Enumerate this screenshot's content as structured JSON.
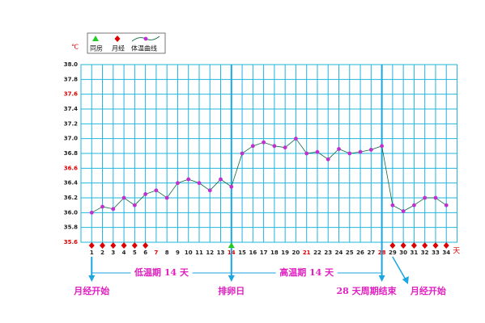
{
  "chart_data": {
    "type": "line",
    "unit": "℃",
    "x_unit": "天",
    "x": [
      1,
      2,
      3,
      4,
      5,
      6,
      7,
      8,
      9,
      10,
      11,
      12,
      13,
      14,
      15,
      16,
      17,
      18,
      19,
      20,
      21,
      22,
      23,
      24,
      25,
      26,
      27,
      28,
      29,
      30,
      31,
      32,
      33,
      34
    ],
    "xlim": [
      0,
      35
    ],
    "x_highlight": {
      "days": [
        7,
        14,
        21,
        28
      ],
      "color": "#dd0000"
    },
    "series": [
      {
        "name": "体温曲线",
        "color": "#0a6a3a",
        "marker_color": "#c030d0",
        "values": [
          36.0,
          36.08,
          36.05,
          36.2,
          36.1,
          36.25,
          36.3,
          36.2,
          36.4,
          36.45,
          36.4,
          36.3,
          36.45,
          36.35,
          36.8,
          36.9,
          36.95,
          36.9,
          36.88,
          37.0,
          36.8,
          36.82,
          36.72,
          36.86,
          36.8,
          36.82,
          36.85,
          36.9,
          36.1,
          36.02,
          36.1,
          36.2,
          36.2,
          36.1
        ]
      }
    ],
    "events": [
      {
        "name": "同房",
        "color": "#22cc22",
        "shape": "triangle",
        "days": [
          14
        ]
      },
      {
        "name": "月经",
        "color": "#dd0000",
        "shape": "diamond",
        "days": [
          1,
          2,
          3,
          4,
          5,
          6,
          29,
          30,
          31,
          32,
          33,
          34
        ]
      }
    ],
    "ylim": [
      35.6,
      38.0
    ],
    "yticks": [
      {
        "value": 38.0,
        "label": "38.0"
      },
      {
        "value": 37.8,
        "label": "37.8"
      },
      {
        "value": 37.6,
        "label": "37.6",
        "color": "#dd0000"
      },
      {
        "value": 37.4,
        "label": "37.4"
      },
      {
        "value": 37.2,
        "label": "37.2"
      },
      {
        "value": 37.0,
        "label": "37.0"
      },
      {
        "value": 36.8,
        "label": "36.8"
      },
      {
        "value": 36.6,
        "label": "36.6",
        "color": "#dd0000"
      },
      {
        "value": 36.4,
        "label": "36.4"
      },
      {
        "value": 36.2,
        "label": "36.2"
      },
      {
        "value": 36.0,
        "label": "36.0"
      },
      {
        "value": 35.8,
        "label": "35.8"
      },
      {
        "value": 35.6,
        "label": "35.6",
        "color": "#dd0000"
      }
    ],
    "grid": true,
    "grid_color": "#22b4dc",
    "markers_line": [
      1,
      14,
      28
    ],
    "spans": [
      {
        "text": "低温期 14 天",
        "from": 1,
        "to": 14
      },
      {
        "text": "高温期 14 天",
        "from": 14,
        "to": 28
      }
    ],
    "labels": [
      {
        "text": "月经开始",
        "day": 1,
        "align": "middle"
      },
      {
        "text": "排卵日",
        "day": 14,
        "align": "middle"
      },
      {
        "text": "28 天周期结束",
        "day": 28,
        "align": "end"
      },
      {
        "text": "月经开始",
        "day": 29,
        "align": "start"
      }
    ]
  }
}
